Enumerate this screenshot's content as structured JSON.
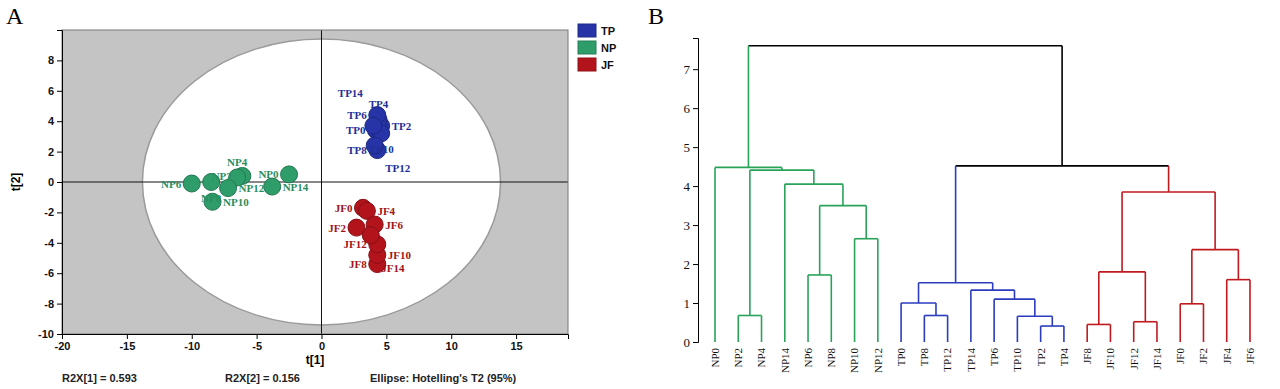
{
  "chart_data": [
    {
      "type": "scatter",
      "title": "A",
      "x_label": "t[1]",
      "y_label": "t[2]",
      "xlim": [
        -20,
        19
      ],
      "ylim": [
        -10,
        10
      ],
      "xticks": [
        -20,
        -15,
        -10,
        -5,
        0,
        5,
        10,
        15
      ],
      "yticks": [
        -10,
        -8,
        -6,
        -4,
        -2,
        0,
        2,
        4,
        6,
        8
      ],
      "legend": "top-right",
      "annotations": [
        "R2X[1] = 0.593",
        "R2X[2] = 0.156"
      ],
      "ellipse": {
        "label": "Ellipse: Hotelling's T2 (95%)",
        "cx": 0,
        "cy": 0,
        "rx": 13.8,
        "ry": 9.4
      },
      "series": [
        {
          "name": "TP",
          "color": "#2634a8",
          "marker": "circle",
          "labels": [
            "TP0",
            "TP2",
            "TP4",
            "TP6",
            "TP8",
            "TP10",
            "TP12",
            "TP14"
          ],
          "x": [
            4.2,
            4.6,
            4.4,
            4.3,
            4.3,
            4.6,
            4.1,
            4.0
          ],
          "values": [
            3.4,
            3.7,
            4.1,
            4.4,
            2.1,
            3.2,
            2.4,
            3.7
          ]
        },
        {
          "name": "NP",
          "color": "#2e9d6a",
          "marker": "circle",
          "labels": [
            "NP0",
            "NP2",
            "NP4",
            "NP6",
            "NP8",
            "NP10",
            "NP12",
            "NP14"
          ],
          "x": [
            -2.5,
            -6.1,
            -6.5,
            -10.0,
            -8.5,
            -8.4,
            -7.2,
            -3.8
          ],
          "values": [
            0.5,
            0.4,
            0.3,
            -0.1,
            0.0,
            -1.3,
            -0.4,
            -0.3
          ]
        },
        {
          "name": "JF",
          "color": "#b3141c",
          "marker": "circle",
          "labels": [
            "JF0",
            "JF2",
            "JF4",
            "JF6",
            "JF8",
            "JF10",
            "JF12",
            "JF14"
          ],
          "x": [
            3.2,
            2.7,
            3.5,
            4.1,
            4.3,
            4.3,
            4.3,
            3.8
          ],
          "values": [
            -1.7,
            -3.0,
            -1.9,
            -2.8,
            -5.4,
            -4.8,
            -4.1,
            -3.5
          ]
        }
      ]
    },
    {
      "type": "dendrogram",
      "title": "B",
      "ylim": [
        0,
        7.8
      ],
      "yticks": [
        0,
        1,
        2,
        3,
        4,
        5,
        6,
        7
      ],
      "tree": {
        "height": 7.6,
        "color": "#000000",
        "children": [
          {
            "height": 4.48,
            "color": "#29a35a",
            "children": [
              {
                "name": "NP0"
              },
              {
                "height": 4.41,
                "children": [
                  {
                    "height": 0.68,
                    "children": [
                      {
                        "name": "NP2"
                      },
                      {
                        "name": "NP4"
                      }
                    ]
                  },
                  {
                    "height": 4.05,
                    "children": [
                      {
                        "name": "NP14"
                      },
                      {
                        "height": 3.5,
                        "children": [
                          {
                            "height": 1.72,
                            "children": [
                              {
                                "name": "NP6"
                              },
                              {
                                "name": "NP8"
                              }
                            ]
                          },
                          {
                            "height": 2.65,
                            "children": [
                              {
                                "name": "NP10"
                              },
                              {
                                "name": "NP12"
                              }
                            ]
                          }
                        ]
                      }
                    ]
                  }
                ]
              }
            ]
          },
          {
            "height": 4.52,
            "color": "#000000",
            "children": [
              {
                "height": 1.52,
                "color": "#2b3cbe",
                "children": [
                  {
                    "height": 1.0,
                    "children": [
                      {
                        "name": "TP0"
                      },
                      {
                        "height": 0.68,
                        "children": [
                          {
                            "name": "TP8"
                          },
                          {
                            "name": "TP12"
                          }
                        ]
                      }
                    ]
                  },
                  {
                    "height": 1.33,
                    "children": [
                      {
                        "name": "TP14"
                      },
                      {
                        "height": 1.1,
                        "children": [
                          {
                            "name": "TP6"
                          },
                          {
                            "height": 0.66,
                            "children": [
                              {
                                "name": "TP10"
                              },
                              {
                                "height": 0.41,
                                "children": [
                                  {
                                    "name": "TP2"
                                  },
                                  {
                                    "name": "TP4"
                                  }
                                ]
                              }
                            ]
                          }
                        ]
                      }
                    ]
                  }
                ]
              },
              {
                "height": 3.85,
                "color": "#bf1a20",
                "children": [
                  {
                    "height": 1.8,
                    "children": [
                      {
                        "height": 0.45,
                        "children": [
                          {
                            "name": "JF8"
                          },
                          {
                            "name": "JF10"
                          }
                        ]
                      },
                      {
                        "height": 0.52,
                        "children": [
                          {
                            "name": "JF12"
                          },
                          {
                            "name": "JF14"
                          }
                        ]
                      }
                    ]
                  },
                  {
                    "height": 2.37,
                    "children": [
                      {
                        "height": 0.98,
                        "children": [
                          {
                            "name": "JF0"
                          },
                          {
                            "name": "JF2"
                          }
                        ]
                      },
                      {
                        "height": 1.6,
                        "children": [
                          {
                            "name": "JF4"
                          },
                          {
                            "name": "JF6"
                          }
                        ]
                      }
                    ]
                  }
                ]
              }
            ]
          }
        ]
      }
    }
  ]
}
